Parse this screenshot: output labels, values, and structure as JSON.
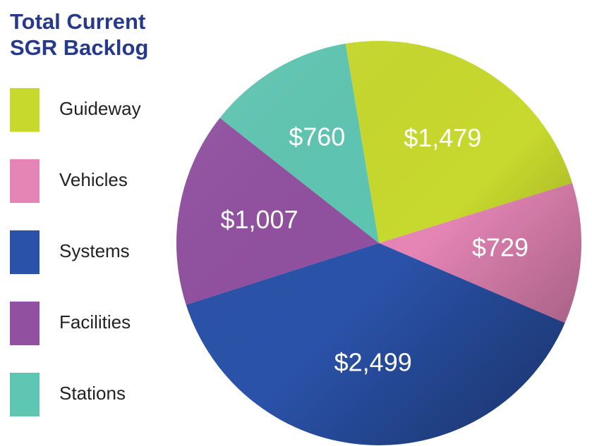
{
  "chart_data": {
    "type": "pie",
    "title": "Total Current SGR Backlog",
    "categories": [
      "Guideway",
      "Vehicles",
      "Systems",
      "Facilities",
      "Stations"
    ],
    "values": [
      1479,
      729,
      2499,
      1007,
      760
    ],
    "value_labels": [
      "$1,479",
      "$729",
      "$2,499",
      "$1,007",
      "$760"
    ],
    "colors": [
      "#c8d92e",
      "#e585b6",
      "#2a52a9",
      "#9150a0",
      "#5ec6b2"
    ]
  }
}
